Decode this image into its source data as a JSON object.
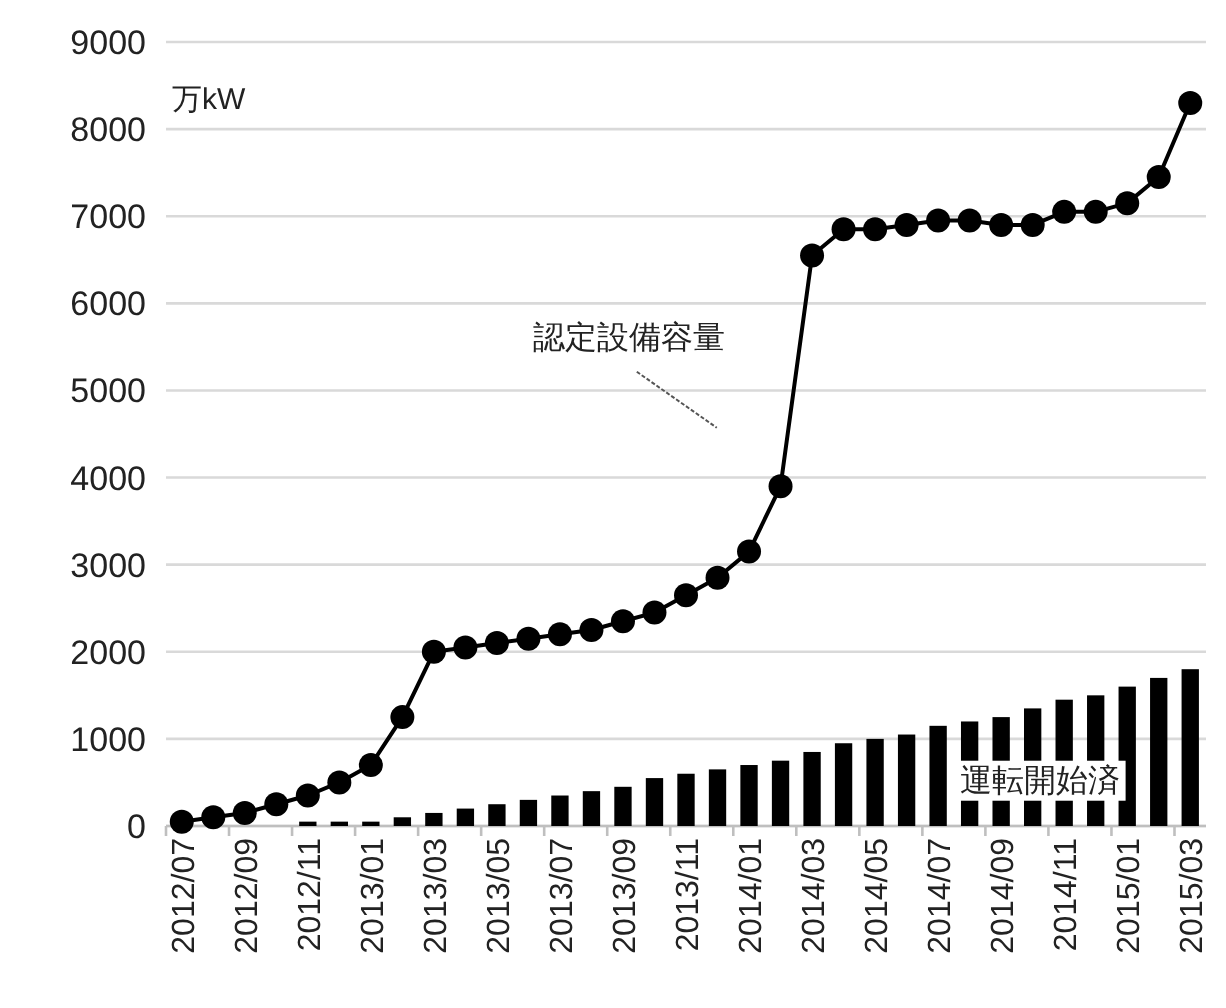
{
  "chart_data": {
    "type": "bar",
    "ylabel": "万kW",
    "categories": [
      "2012/07",
      null,
      "2012/09",
      null,
      "2012/11",
      null,
      "2013/01",
      null,
      "2013/03",
      null,
      "2013/05",
      null,
      "2013/07",
      null,
      "2013/09",
      null,
      "2013/11",
      null,
      "2014/01",
      null,
      "2014/03",
      null,
      "2014/05",
      null,
      "2014/07",
      null,
      "2014/09",
      null,
      "2014/11",
      null,
      "2015/01",
      null,
      "2015/03"
    ],
    "series": [
      {
        "name": "認定設備容量",
        "type": "line",
        "color": "#000000",
        "marker": "circle",
        "values": [
          50,
          100,
          150,
          250,
          350,
          500,
          700,
          1250,
          2000,
          2050,
          2100,
          2150,
          2200,
          2250,
          2350,
          2450,
          2650,
          2850,
          3150,
          3900,
          6550,
          6850,
          6850,
          6900,
          6950,
          6950,
          6900,
          6900,
          7050,
          7050,
          7150,
          7450,
          8300
        ]
      },
      {
        "name": "運転開始済",
        "color": "#000000",
        "values": [
          null,
          null,
          null,
          null,
          50,
          50,
          50,
          100,
          150,
          200,
          250,
          300,
          350,
          400,
          450,
          550,
          600,
          650,
          700,
          750,
          850,
          950,
          1000,
          1050,
          1150,
          1200,
          1250,
          1350,
          1450,
          1500,
          1600,
          1700,
          1800
        ]
      }
    ],
    "ylim": [
      0,
      9000
    ],
    "yticks": [
      0,
      1000,
      2000,
      3000,
      4000,
      5000,
      6000,
      7000,
      8000,
      9000
    ],
    "grid": "y"
  }
}
